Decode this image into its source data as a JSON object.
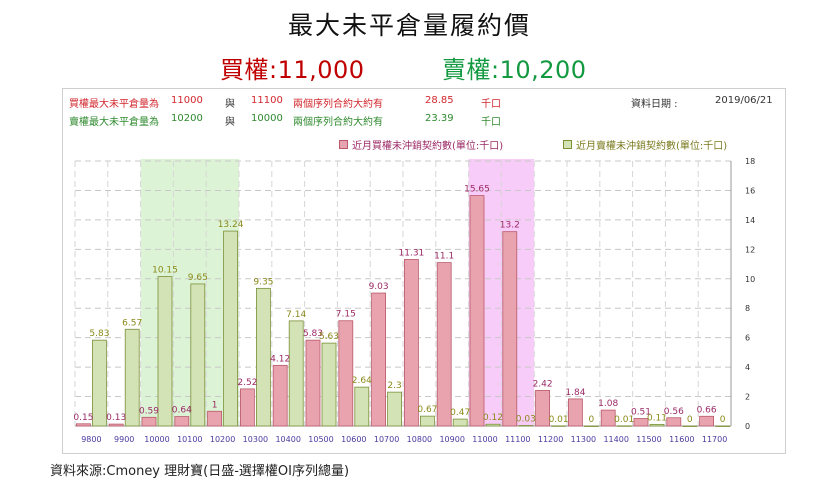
{
  "header": {
    "title": "最大未平倉量履約價",
    "call_text": "買權:11,000",
    "put_text": "賣權:10,200"
  },
  "info": {
    "call_row": {
      "label": "買權最大未平倉量為",
      "strike1": "11000",
      "and": "與",
      "strike2": "11100",
      "mid": "兩個序列合約大約有",
      "amount": "28.85",
      "unit": "千口"
    },
    "put_row": {
      "label": "賣權最大未平倉量為",
      "strike1": "10200",
      "and": "與",
      "strike2": "10000",
      "mid": "兩個序列合約大約有",
      "amount": "23.39",
      "unit": "千口"
    },
    "date_label": "資料日期 :",
    "date_value": "2019/06/21"
  },
  "legend": {
    "call": "近月買權未沖銷契約數(單位:千口)",
    "put": "近月賣權未沖銷契約數(單位:千口)"
  },
  "source": "資料來源:Cmoney 理財寶(日盛-選擇權OI序列總量)",
  "colors": {
    "call_fill": "#e8a3ae",
    "call_stroke": "#b85a6a",
    "put_fill": "#d3e3b5",
    "put_stroke": "#7c8f3a",
    "call_label": "#9b2a66",
    "put_label": "#8a8a1a",
    "call_highlight": "#f7c6f7",
    "put_highlight": "#d8f3d0",
    "axis_label": "#4a3aa0"
  },
  "chart_data": {
    "type": "bar",
    "categories": [
      "9800",
      "9900",
      "10000",
      "10100",
      "10200",
      "10300",
      "10400",
      "10500",
      "10600",
      "10700",
      "10800",
      "10900",
      "11000",
      "11100",
      "11200",
      "11300",
      "11400",
      "11500",
      "11600",
      "11700"
    ],
    "series": [
      {
        "name": "近月買權未沖銷契約數(單位:千口)",
        "values": [
          0.15,
          0.13,
          0.59,
          0.64,
          1,
          2.52,
          4.12,
          5.83,
          7.15,
          9.03,
          11.31,
          11.1,
          15.65,
          13.2,
          2.42,
          1.84,
          1.08,
          0.51,
          0.56,
          0.66
        ]
      },
      {
        "name": "近月賣權未沖銷契約數(單位:千口)",
        "values": [
          5.83,
          6.57,
          10.15,
          9.65,
          13.24,
          9.35,
          7.14,
          5.63,
          2.64,
          2.3,
          0.67,
          0.47,
          0.12,
          0.03,
          0.01,
          0,
          0.01,
          0.11,
          0,
          0
        ]
      }
    ],
    "ylim": [
      0,
      18
    ],
    "yticks": [
      0,
      2,
      4,
      6,
      8,
      10,
      12,
      14,
      16,
      18
    ],
    "y_axis_side": "right",
    "grid": true,
    "highlight_put_range": [
      "10000",
      "10200"
    ],
    "highlight_call_range": [
      "11000",
      "11100"
    ],
    "legend_position": "top-right"
  }
}
